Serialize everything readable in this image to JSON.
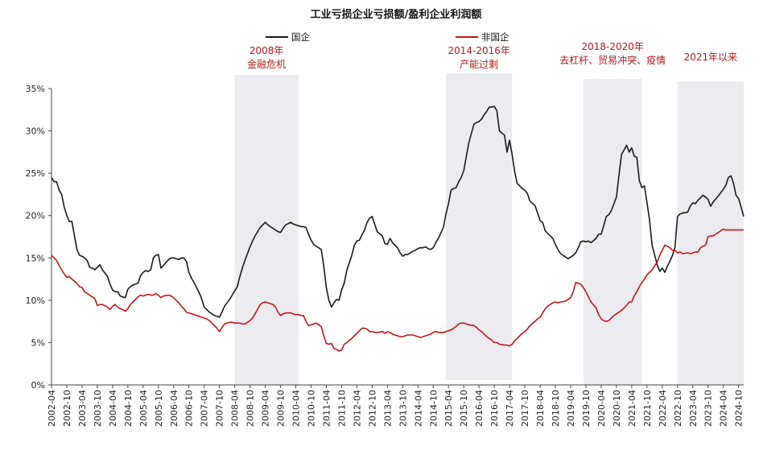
{
  "chart_data": {
    "type": "line",
    "title": "工业亏损企业亏损额/盈利企业利润额",
    "xlabel": "",
    "ylabel": "",
    "ylim": [
      0,
      35
    ],
    "yticks": [
      "0%",
      "5%",
      "10%",
      "15%",
      "20%",
      "25%",
      "30%",
      "35%"
    ],
    "xticks": [
      "2002-04",
      "2002-10",
      "2003-04",
      "2003-10",
      "2004-04",
      "2004-10",
      "2005-04",
      "2005-10",
      "2006-04",
      "2006-10",
      "2007-04",
      "2007-10",
      "2008-04",
      "2008-10",
      "2009-04",
      "2009-10",
      "2010-04",
      "2010-10",
      "2011-04",
      "2011-10",
      "2012-04",
      "2012-10",
      "2013-04",
      "2013-10",
      "2014-04",
      "2014-10",
      "2015-04",
      "2015-10",
      "2016-04",
      "2016-10",
      "2017-04",
      "2017-10",
      "2018-04",
      "2018-10",
      "2019-04",
      "2019-10",
      "2020-04",
      "2020-10",
      "2021-04",
      "2021-10",
      "2022-04",
      "2022-10",
      "2023-04",
      "2023-10",
      "2024-04",
      "2024-10"
    ],
    "x_start": "2002-04",
    "x_end": "2024-12",
    "grid": false,
    "legend_position": "top-center",
    "colors": {
      "state": "#1a1a1a",
      "non_state": "#c0161b",
      "shade": "#ebebf0",
      "annotation": "#b01a1a"
    },
    "series": [
      {
        "name": "国企",
        "color": "#1a1a1a",
        "points": [
          [
            "2002-04",
            24.5
          ],
          [
            "2002-05",
            24.0
          ],
          [
            "2002-06",
            24.0
          ],
          [
            "2002-07",
            23.0
          ],
          [
            "2002-08",
            22.5
          ],
          [
            "2002-09",
            21.0
          ],
          [
            "2002-10",
            20.0
          ],
          [
            "2002-11",
            19.3
          ],
          [
            "2002-12",
            19.3
          ],
          [
            "2003-02",
            16.0
          ],
          [
            "2003-03",
            15.3
          ],
          [
            "2003-04",
            15.2
          ],
          [
            "2003-05",
            15.0
          ],
          [
            "2003-06",
            14.7
          ],
          [
            "2003-07",
            13.9
          ],
          [
            "2003-08",
            13.8
          ],
          [
            "2003-09",
            13.6
          ],
          [
            "2003-10",
            13.9
          ],
          [
            "2003-11",
            14.2
          ],
          [
            "2003-12",
            13.6
          ],
          [
            "2004-02",
            12.8
          ],
          [
            "2004-03",
            11.9
          ],
          [
            "2004-04",
            11.2
          ],
          [
            "2004-05",
            11.0
          ],
          [
            "2004-06",
            11.0
          ],
          [
            "2004-07",
            10.5
          ],
          [
            "2004-08",
            10.4
          ],
          [
            "2004-09",
            10.3
          ],
          [
            "2004-10",
            11.3
          ],
          [
            "2004-11",
            11.6
          ],
          [
            "2004-12",
            11.8
          ],
          [
            "2005-02",
            12.0
          ],
          [
            "2005-03",
            12.9
          ],
          [
            "2005-04",
            13.3
          ],
          [
            "2005-05",
            13.5
          ],
          [
            "2005-06",
            13.4
          ],
          [
            "2005-07",
            13.6
          ],
          [
            "2005-08",
            15.0
          ],
          [
            "2005-09",
            15.3
          ],
          [
            "2005-10",
            15.4
          ],
          [
            "2005-11",
            13.8
          ],
          [
            "2005-12",
            14.1
          ],
          [
            "2006-02",
            14.8
          ],
          [
            "2006-03",
            15.0
          ],
          [
            "2006-04",
            15.0
          ],
          [
            "2006-05",
            14.9
          ],
          [
            "2006-06",
            14.8
          ],
          [
            "2006-07",
            15.0
          ],
          [
            "2006-08",
            15.0
          ],
          [
            "2006-09",
            14.6
          ],
          [
            "2006-10",
            13.3
          ],
          [
            "2006-11",
            12.6
          ],
          [
            "2006-12",
            12.1
          ],
          [
            "2007-02",
            10.9
          ],
          [
            "2007-03",
            10.2
          ],
          [
            "2007-04",
            9.2
          ],
          [
            "2007-05",
            8.9
          ],
          [
            "2007-06",
            8.6
          ],
          [
            "2007-07",
            8.4
          ],
          [
            "2007-08",
            8.2
          ],
          [
            "2007-09",
            8.1
          ],
          [
            "2007-10",
            8.0
          ],
          [
            "2007-11",
            8.6
          ],
          [
            "2007-12",
            9.3
          ],
          [
            "2008-02",
            10.1
          ],
          [
            "2008-03",
            10.6
          ],
          [
            "2008-04",
            11.1
          ],
          [
            "2008-05",
            11.6
          ],
          [
            "2008-06",
            12.8
          ],
          [
            "2008-07",
            13.8
          ],
          [
            "2008-08",
            14.7
          ],
          [
            "2008-09",
            15.5
          ],
          [
            "2008-10",
            16.3
          ],
          [
            "2008-11",
            17.0
          ],
          [
            "2008-12",
            17.6
          ],
          [
            "2009-02",
            18.6
          ],
          [
            "2009-03",
            18.9
          ],
          [
            "2009-04",
            19.2
          ],
          [
            "2009-05",
            18.9
          ],
          [
            "2009-06",
            18.7
          ],
          [
            "2009-07",
            18.5
          ],
          [
            "2009-08",
            18.3
          ],
          [
            "2009-09",
            18.1
          ],
          [
            "2009-10",
            18.0
          ],
          [
            "2009-11",
            18.5
          ],
          [
            "2009-12",
            18.9
          ],
          [
            "2010-02",
            19.2
          ],
          [
            "2010-03",
            19.0
          ],
          [
            "2010-04",
            18.9
          ],
          [
            "2010-05",
            18.8
          ],
          [
            "2010-06",
            18.7
          ],
          [
            "2010-07",
            18.7
          ],
          [
            "2010-08",
            18.6
          ],
          [
            "2010-09",
            17.8
          ],
          [
            "2010-10",
            17.1
          ],
          [
            "2010-11",
            16.6
          ],
          [
            "2010-12",
            16.4
          ],
          [
            "2011-02",
            16.0
          ],
          [
            "2011-03",
            14.0
          ],
          [
            "2011-04",
            11.5
          ],
          [
            "2011-05",
            10.0
          ],
          [
            "2011-06",
            9.2
          ],
          [
            "2011-07",
            9.7
          ],
          [
            "2011-08",
            10.1
          ],
          [
            "2011-09",
            10.0
          ],
          [
            "2011-10",
            11.2
          ],
          [
            "2011-11",
            12.0
          ],
          [
            "2011-12",
            13.5
          ],
          [
            "2012-02",
            15.3
          ],
          [
            "2012-03",
            16.5
          ],
          [
            "2012-04",
            17.0
          ],
          [
            "2012-05",
            17.1
          ],
          [
            "2012-06",
            17.7
          ],
          [
            "2012-07",
            18.3
          ],
          [
            "2012-08",
            19.2
          ],
          [
            "2012-09",
            19.7
          ],
          [
            "2012-10",
            19.9
          ],
          [
            "2012-11",
            19.0
          ],
          [
            "2012-12",
            18.1
          ],
          [
            "2013-02",
            17.6
          ],
          [
            "2013-03",
            16.7
          ],
          [
            "2013-04",
            16.6
          ],
          [
            "2013-05",
            17.3
          ],
          [
            "2013-06",
            16.8
          ],
          [
            "2013-07",
            16.5
          ],
          [
            "2013-08",
            16.2
          ],
          [
            "2013-09",
            15.6
          ],
          [
            "2013-10",
            15.2
          ],
          [
            "2013-11",
            15.4
          ],
          [
            "2013-12",
            15.4
          ],
          [
            "2014-02",
            15.8
          ],
          [
            "2014-03",
            15.9
          ],
          [
            "2014-04",
            16.1
          ],
          [
            "2014-05",
            16.2
          ],
          [
            "2014-06",
            16.2
          ],
          [
            "2014-07",
            16.3
          ],
          [
            "2014-08",
            16.1
          ],
          [
            "2014-09",
            16.0
          ],
          [
            "2014-10",
            16.2
          ],
          [
            "2014-11",
            16.8
          ],
          [
            "2014-12",
            17.3
          ],
          [
            "2015-02",
            18.6
          ],
          [
            "2015-03",
            20.2
          ],
          [
            "2015-04",
            21.4
          ],
          [
            "2015-05",
            23.0
          ],
          [
            "2015-06",
            23.2
          ],
          [
            "2015-07",
            23.3
          ],
          [
            "2015-08",
            24.0
          ],
          [
            "2015-09",
            24.5
          ],
          [
            "2015-10",
            25.3
          ],
          [
            "2015-11",
            27.0
          ],
          [
            "2015-12",
            28.6
          ],
          [
            "2016-02",
            30.8
          ],
          [
            "2016-03",
            31.0
          ],
          [
            "2016-04",
            31.1
          ],
          [
            "2016-05",
            31.4
          ],
          [
            "2016-06",
            31.9
          ],
          [
            "2016-07",
            32.3
          ],
          [
            "2016-08",
            32.8
          ],
          [
            "2016-09",
            32.8
          ],
          [
            "2016-10",
            32.9
          ],
          [
            "2016-11",
            32.4
          ],
          [
            "2016-12",
            30.0
          ],
          [
            "2017-02",
            29.5
          ],
          [
            "2017-03",
            27.5
          ],
          [
            "2017-04",
            28.9
          ],
          [
            "2017-05",
            27.2
          ],
          [
            "2017-06",
            25.2
          ],
          [
            "2017-07",
            23.8
          ],
          [
            "2017-08",
            23.5
          ],
          [
            "2017-09",
            23.2
          ],
          [
            "2017-10",
            23.0
          ],
          [
            "2017-11",
            22.6
          ],
          [
            "2017-12",
            21.7
          ],
          [
            "2018-02",
            21.2
          ],
          [
            "2018-03",
            20.3
          ],
          [
            "2018-04",
            19.4
          ],
          [
            "2018-05",
            19.2
          ],
          [
            "2018-06",
            18.2
          ],
          [
            "2018-07",
            17.9
          ],
          [
            "2018-08",
            17.6
          ],
          [
            "2018-09",
            17.3
          ],
          [
            "2018-10",
            16.6
          ],
          [
            "2018-11",
            16.0
          ],
          [
            "2018-12",
            15.5
          ],
          [
            "2019-02",
            15.1
          ],
          [
            "2019-03",
            14.9
          ],
          [
            "2019-04",
            15.1
          ],
          [
            "2019-05",
            15.3
          ],
          [
            "2019-06",
            15.6
          ],
          [
            "2019-07",
            16.2
          ],
          [
            "2019-08",
            16.9
          ],
          [
            "2019-09",
            17.0
          ],
          [
            "2019-10",
            16.9
          ],
          [
            "2019-11",
            17.0
          ],
          [
            "2019-12",
            16.8
          ],
          [
            "2020-02",
            17.3
          ],
          [
            "2020-03",
            17.8
          ],
          [
            "2020-04",
            17.8
          ],
          [
            "2020-05",
            18.8
          ],
          [
            "2020-06",
            19.9
          ],
          [
            "2020-07",
            20.1
          ],
          [
            "2020-08",
            20.6
          ],
          [
            "2020-09",
            21.4
          ],
          [
            "2020-10",
            22.2
          ],
          [
            "2020-11",
            24.8
          ],
          [
            "2020-12",
            27.2
          ],
          [
            "2021-02",
            28.3
          ],
          [
            "2021-03",
            27.5
          ],
          [
            "2021-04",
            28.0
          ],
          [
            "2021-05",
            27.0
          ],
          [
            "2021-06",
            26.9
          ],
          [
            "2021-07",
            24.1
          ],
          [
            "2021-08",
            23.3
          ],
          [
            "2021-09",
            23.5
          ],
          [
            "2021-10",
            21.5
          ],
          [
            "2021-11",
            19.5
          ],
          [
            "2021-12",
            16.5
          ],
          [
            "2022-02",
            14.2
          ],
          [
            "2022-03",
            13.4
          ],
          [
            "2022-04",
            13.8
          ],
          [
            "2022-05",
            13.3
          ],
          [
            "2022-06",
            14.0
          ],
          [
            "2022-07",
            14.6
          ],
          [
            "2022-08",
            15.3
          ],
          [
            "2022-09",
            16.2
          ],
          [
            "2022-10",
            19.9
          ],
          [
            "2022-11",
            20.2
          ],
          [
            "2022-12",
            20.3
          ],
          [
            "2023-02",
            20.4
          ],
          [
            "2023-03",
            21.1
          ],
          [
            "2023-04",
            21.5
          ],
          [
            "2023-05",
            21.4
          ],
          [
            "2023-06",
            21.8
          ],
          [
            "2023-07",
            22.1
          ],
          [
            "2023-08",
            22.4
          ],
          [
            "2023-09",
            22.2
          ],
          [
            "2023-10",
            21.9
          ],
          [
            "2023-11",
            21.1
          ],
          [
            "2023-12",
            21.6
          ],
          [
            "2024-02",
            22.3
          ],
          [
            "2024-03",
            22.7
          ],
          [
            "2024-04",
            23.1
          ],
          [
            "2024-05",
            23.6
          ],
          [
            "2024-06",
            24.5
          ],
          [
            "2024-07",
            24.7
          ],
          [
            "2024-08",
            23.8
          ],
          [
            "2024-09",
            22.4
          ],
          [
            "2024-10",
            22.0
          ],
          [
            "2024-11",
            21.0
          ],
          [
            "2024-12",
            19.9
          ]
        ]
      },
      {
        "name": "非国企",
        "color": "#c0161b",
        "points": []
      }
    ],
    "shaded_periods": [
      {
        "label_lines": [
          "2008年",
          "金融危机"
        ],
        "start": "2008-04",
        "end": "2010-05"
      },
      {
        "label_lines": [
          "2014-2016年",
          "产能过剩"
        ],
        "start": "2015-03",
        "end": "2017-05"
      },
      {
        "label_lines": [
          "2018-2020年",
          "去杠杆、贸易冲突、疫情"
        ],
        "start": "2019-09",
        "end": "2021-08"
      },
      {
        "label_lines": [
          "2021年以来"
        ],
        "start": "2022-10",
        "end": "2024-12"
      }
    ]
  }
}
